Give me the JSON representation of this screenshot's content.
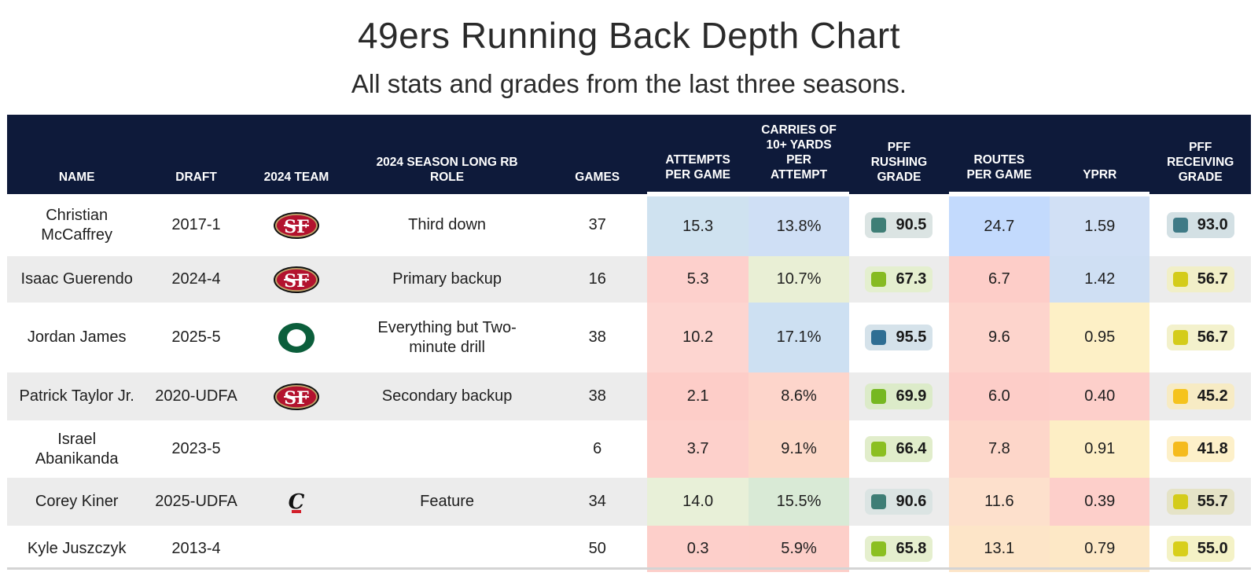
{
  "title": "49ers Running Back Depth Chart",
  "subtitle": "All stats and grades from the last three seasons.",
  "columns": [
    "NAME",
    "DRAFT",
    "2024 TEAM",
    "2024 SEASON LONG RB ROLE",
    "GAMES",
    "ATTEMPTS PER GAME",
    "CARRIES OF 10+ YARDS PER ATTEMPT",
    "PFF RUSHING GRADE",
    "ROUTES PER GAME",
    "YPRR",
    "PFF RECEIVING GRADE"
  ],
  "rows": [
    {
      "name": "Christian McCaffrey",
      "draft": "2017-1",
      "team_logo": "49ers-logo",
      "role": "Third down",
      "games": "37",
      "apg": "15.3",
      "c10": "13.8%",
      "rush": "90.5",
      "rpg": "24.7",
      "yprr": "1.59",
      "recv": "93.0"
    },
    {
      "name": "Isaac Guerendo",
      "draft": "2024-4",
      "team_logo": "49ers-logo",
      "role": "Primary backup",
      "games": "16",
      "apg": "5.3",
      "c10": "10.7%",
      "rush": "67.3",
      "rpg": "6.7",
      "yprr": "1.42",
      "recv": "56.7"
    },
    {
      "name": "Jordan James",
      "draft": "2025-5",
      "team_logo": "oregon-logo",
      "role": "Everything but Two-minute drill",
      "games": "38",
      "apg": "10.2",
      "c10": "17.1%",
      "rush": "95.5",
      "rpg": "9.6",
      "yprr": "0.95",
      "recv": "56.7"
    },
    {
      "name": "Patrick Taylor Jr.",
      "draft": "2020-UDFA",
      "team_logo": "49ers-logo",
      "role": "Secondary backup",
      "games": "38",
      "apg": "2.1",
      "c10": "8.6%",
      "rush": "69.9",
      "rpg": "6.0",
      "yprr": "0.40",
      "recv": "45.2"
    },
    {
      "name": "Israel Abanikanda",
      "draft": "2023-5",
      "team_logo": "",
      "role": "",
      "games": "6",
      "apg": "3.7",
      "c10": "9.1%",
      "rush": "66.4",
      "rpg": "7.8",
      "yprr": "0.91",
      "recv": "41.8"
    },
    {
      "name": "Corey Kiner",
      "draft": "2025-UDFA",
      "team_logo": "cincinnati-logo",
      "role": "Feature",
      "games": "34",
      "apg": "14.0",
      "c10": "15.5%",
      "rush": "90.6",
      "rpg": "11.6",
      "yprr": "0.39",
      "recv": "55.7"
    },
    {
      "name": "Kyle Juszczyk",
      "draft": "2013-4",
      "team_logo": "",
      "role": "",
      "games": "50",
      "apg": "0.3",
      "c10": "5.9%",
      "rush": "65.8",
      "rpg": "13.1",
      "yprr": "0.79",
      "recv": "55.0"
    }
  ],
  "colors": {
    "header_bg": "#0e1a3a",
    "apg": [
      "#cfe2f0",
      "#fdd0cc",
      "#fdd5d0",
      "#fdcdc8",
      "#fdd0cb",
      "#e8f0d8",
      "#fdcfca"
    ],
    "c10": [
      "#cfdff5",
      "#e9efd5",
      "#cde0f2",
      "#fdd5cb",
      "#fdd8c8",
      "#d9ead6",
      "#fdcfc9"
    ],
    "rpg": [
      "#c3dafd",
      "#fdcdc8",
      "#fdd4cc",
      "#fdcdc8",
      "#fdd6c9",
      "#fde0cc",
      "#fde5c8"
    ],
    "yprr": [
      "#d1e0f5",
      "#cfdff3",
      "#fdf0c6",
      "#fdcfca",
      "#fdeec5",
      "#fdcfca",
      "#fde8c6"
    ],
    "rush_pill_bg": [
      "#dbe4e3",
      "#e4efcf",
      "#d5e2ea",
      "#dcebc9",
      "#e1edcb",
      "#dbe4e3",
      "#e5efce"
    ],
    "rush_sq": [
      "#3f7e76",
      "#86bb22",
      "#2f6e93",
      "#76b821",
      "#8bbf22",
      "#3f7e76",
      "#8bbf22"
    ],
    "recv_pill_bg": [
      "#d3e0e4",
      "#f1efc8",
      "#f3f1cc",
      "#f7ebc4",
      "#fdf0c9",
      "#e5e3c7",
      "#f4f2c6"
    ],
    "recv_sq": [
      "#3f7a86",
      "#d4cc1a",
      "#d4cc1a",
      "#f5c31d",
      "#f5bb1d",
      "#d4cc1a",
      "#d8cf1b"
    ]
  },
  "chart_data": {
    "type": "table",
    "title": "49ers Running Back Depth Chart",
    "subtitle": "All stats and grades from the last three seasons.",
    "columns": [
      "Name",
      "Draft",
      "2024 Team",
      "2024 Season Long RB Role",
      "Games",
      "Attempts per Game",
      "Carries of 10+ Yards per Attempt",
      "PFF Rushing Grade",
      "Routes per Game",
      "YPRR",
      "PFF Receiving Grade"
    ],
    "rows": [
      [
        "Christian McCaffrey",
        "2017-1",
        "49ers",
        "Third down",
        37,
        15.3,
        "13.8%",
        90.5,
        24.7,
        1.59,
        93.0
      ],
      [
        "Isaac Guerendo",
        "2024-4",
        "49ers",
        "Primary backup",
        16,
        5.3,
        "10.7%",
        67.3,
        6.7,
        1.42,
        56.7
      ],
      [
        "Jordan James",
        "2025-5",
        "Oregon",
        "Everything but Two-minute drill",
        38,
        10.2,
        "17.1%",
        95.5,
        9.6,
        0.95,
        56.7
      ],
      [
        "Patrick Taylor Jr.",
        "2020-UDFA",
        "49ers",
        "Secondary backup",
        38,
        2.1,
        "8.6%",
        69.9,
        6.0,
        0.4,
        45.2
      ],
      [
        "Israel Abanikanda",
        "2023-5",
        "",
        "",
        6,
        3.7,
        "9.1%",
        66.4,
        7.8,
        0.91,
        41.8
      ],
      [
        "Corey Kiner",
        "2025-UDFA",
        "Cincinnati",
        "Feature",
        34,
        14.0,
        "15.5%",
        90.6,
        11.6,
        0.39,
        55.7
      ],
      [
        "Kyle Juszczyk",
        "2013-4",
        "",
        "",
        50,
        0.3,
        "5.9%",
        65.8,
        13.1,
        0.79,
        55.0
      ]
    ]
  }
}
